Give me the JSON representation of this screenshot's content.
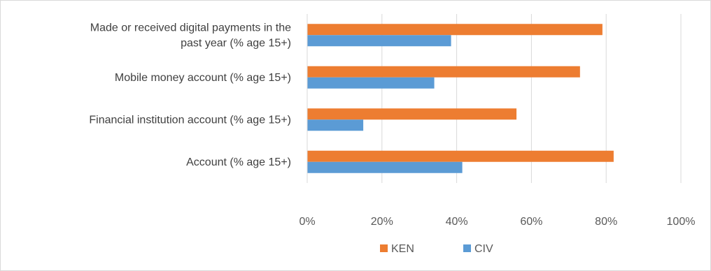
{
  "chart_data": {
    "type": "bar",
    "orientation": "horizontal",
    "categories": [
      [
        "Made or received digital payments in the",
        "past year (% age 15+)"
      ],
      [
        "Mobile money account (% age 15+)"
      ],
      [
        "Financial institution account (% age 15+)"
      ],
      [
        "Account (% age 15+)"
      ]
    ],
    "series": [
      {
        "name": "KEN",
        "color": "#ed7d31",
        "values": [
          79,
          73,
          56,
          82
        ]
      },
      {
        "name": "CIV",
        "color": "#5b9bd5",
        "values": [
          38.5,
          34,
          15,
          41.5
        ]
      }
    ],
    "xlim": [
      0,
      100
    ],
    "xticks": [
      0,
      20,
      40,
      60,
      80,
      100
    ],
    "xtick_labels": [
      "0%",
      "20%",
      "40%",
      "60%",
      "80%",
      "100%"
    ],
    "grid": "vertical",
    "legend_position": "bottom"
  }
}
